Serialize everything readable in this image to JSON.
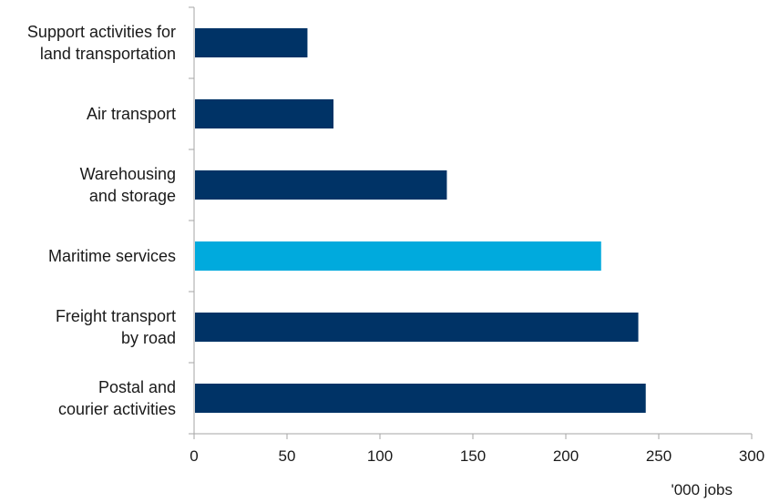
{
  "chart_data": {
    "type": "bar",
    "orientation": "horizontal",
    "categories": [
      [
        "Support activities for",
        "land transportation"
      ],
      [
        "Air transport"
      ],
      [
        "Warehousing",
        "and storage"
      ],
      [
        "Maritime services"
      ],
      [
        "Freight transport",
        "by road"
      ],
      [
        "Postal and",
        "courier activities"
      ]
    ],
    "values": [
      61,
      75,
      136,
      219,
      239,
      243
    ],
    "highlight_index": 3,
    "xlim": [
      0,
      300
    ],
    "xticks": [
      "0",
      "50",
      "100",
      "150",
      "200",
      "250",
      "300"
    ],
    "xlabel": "'000 jobs",
    "grid": false,
    "colors": {
      "bar": "#003366",
      "highlight": "#00aadd",
      "axis": "#a6a6a6",
      "text": "#1a1a1a"
    }
  }
}
